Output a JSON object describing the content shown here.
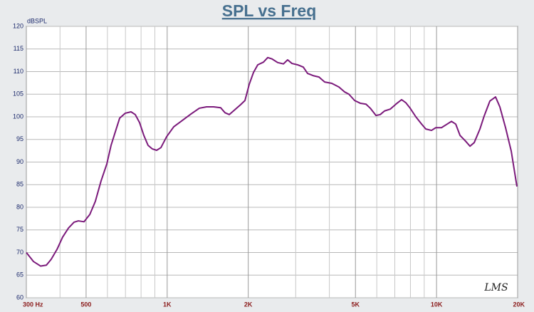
{
  "chart_data": {
    "type": "line",
    "title": "SPL vs Freq",
    "y_label": "dBSPL",
    "watermark": "LMS",
    "log_x": true,
    "grid": true,
    "xlim": [
      300,
      20000
    ],
    "ylim": [
      60,
      120
    ],
    "xticks": [
      {
        "value": 300,
        "label": "300  Hz"
      },
      500,
      {
        "value": 1000,
        "label": "1K"
      },
      {
        "value": 2000,
        "label": "2K"
      },
      {
        "value": 5000,
        "label": "5K"
      },
      {
        "value": 10000,
        "label": "10K"
      },
      {
        "value": 20000,
        "label": "20K"
      }
    ],
    "xminor": [
      400,
      600,
      700,
      800,
      900,
      3000,
      4000,
      6000,
      7000,
      8000,
      9000
    ],
    "yticks": [
      60,
      65,
      70,
      75,
      80,
      85,
      90,
      95,
      100,
      105,
      110,
      115,
      120
    ],
    "x": [
      300,
      319,
      339,
      356,
      371,
      390,
      409,
      430,
      451,
      468,
      491,
      516,
      541,
      568,
      597,
      619,
      642,
      666,
      699,
      734,
      761,
      790,
      819,
      849,
      881,
      914,
      948,
      995,
      1058,
      1138,
      1224,
      1316,
      1400,
      1487,
      1580,
      1640,
      1700,
      1785,
      1874,
      1944,
      2017,
      2091,
      2169,
      2278,
      2362,
      2450,
      2572,
      2701,
      2800,
      2905,
      3049,
      3201,
      3320,
      3486,
      3660,
      3843,
      4084,
      4340,
      4558,
      4728,
      4965,
      5212,
      5472,
      5676,
      5959,
      6181,
      6411,
      6730,
      7066,
      7418,
      7695,
      7981,
      8379,
      8797,
      9124,
      9579,
      9934,
      10430,
      10950,
      11360,
      11780,
      12220,
      12830,
      13310,
      13800,
      14490,
      15030,
      15780,
      16560,
      17180,
      18040,
      18940,
      19880
    ],
    "series": [
      {
        "name": "SPL",
        "color": "#7b1a7b",
        "values": [
          70,
          68,
          67,
          67.2,
          68.5,
          70.7,
          73.4,
          75.4,
          76.7,
          77,
          76.8,
          78.4,
          81.3,
          85.8,
          89.6,
          93.7,
          96.7,
          99.7,
          100.8,
          101.1,
          100.5,
          98.7,
          95.9,
          93.7,
          92.9,
          92.6,
          93.2,
          95.6,
          97.8,
          99.2,
          100.6,
          101.9,
          102.2,
          102.2,
          102,
          100.9,
          100.5,
          101.6,
          102.7,
          103.6,
          107.2,
          109.8,
          111.5,
          112.1,
          113.1,
          112.8,
          112,
          111.7,
          112.6,
          111.8,
          111.5,
          111,
          109.6,
          109.1,
          108.8,
          107.7,
          107.4,
          106.6,
          105.5,
          105,
          103.6,
          103,
          102.8,
          101.9,
          100.3,
          100.5,
          101.3,
          101.7,
          102.8,
          103.8,
          103.1,
          101.9,
          100,
          98.4,
          97.3,
          97,
          97.6,
          97.6,
          98.4,
          99,
          98.4,
          95.9,
          94.6,
          93.5,
          94.3,
          97.3,
          100.2,
          103.5,
          104.4,
          102.2,
          97.6,
          92.4,
          84.6
        ]
      }
    ]
  }
}
